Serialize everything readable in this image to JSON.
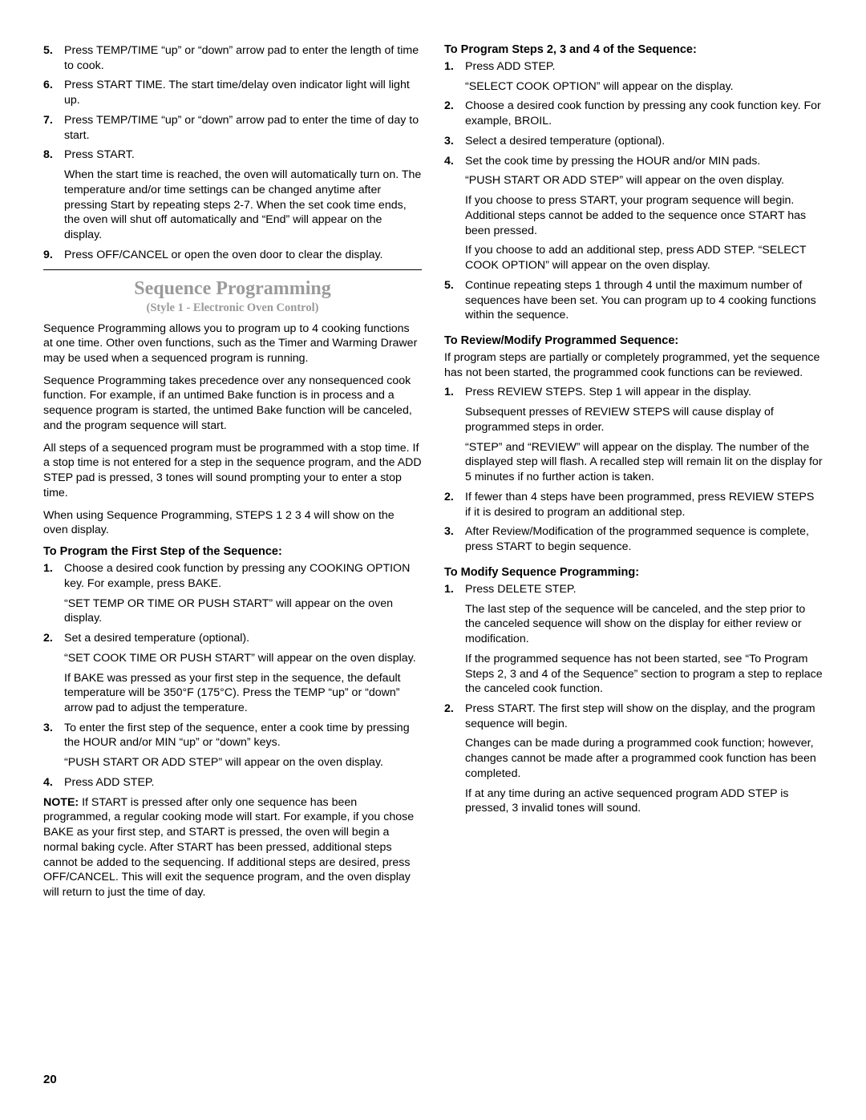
{
  "left": {
    "top_list": [
      {
        "n": "5.",
        "paras": [
          "Press TEMP/TIME “up” or “down” arrow pad to enter the length of time to cook."
        ]
      },
      {
        "n": "6.",
        "paras": [
          "Press START TIME. The start time/delay oven indicator light will light up."
        ]
      },
      {
        "n": "7.",
        "paras": [
          "Press TEMP/TIME “up” or “down” arrow pad to enter the time of day to start."
        ]
      },
      {
        "n": "8.",
        "paras": [
          "Press START.",
          "When the start time is reached, the oven will automatically turn on. The temperature and/or time settings can be changed anytime after pressing Start by repeating steps 2-7. When the set cook time ends, the oven will shut off automatically and “End” will appear on the display."
        ]
      },
      {
        "n": "9.",
        "paras": [
          "Press OFF/CANCEL or open the oven door to clear the display."
        ]
      }
    ],
    "section_title": "Sequence Programming",
    "section_sub": "(Style 1 - Electronic Oven Control)",
    "intro": [
      "Sequence Programming allows you to program up to 4 cooking functions at one time. Other oven functions, such as the Timer and Warming Drawer may be used when a sequenced program is running.",
      "Sequence Programming takes precedence over any nonsequenced cook function. For example, if an untimed Bake function is in process and a sequence program is started, the untimed Bake function will be canceled, and the program sequence will start.",
      "All steps of a sequenced program must be programmed with a stop time. If a stop time is not entered for a step in the sequence program, and the ADD STEP pad is pressed, 3 tones will sound prompting your to enter a stop time.",
      "When using Sequence Programming, STEPS 1 2 3 4 will show on the oven display."
    ],
    "h_first": "To Program the First Step of the Sequence:",
    "first_list": [
      {
        "n": "1.",
        "paras": [
          "Choose a desired cook function by pressing any COOKING OPTION key. For example, press BAKE.",
          "“SET TEMP OR TIME OR PUSH START” will appear on the oven display."
        ]
      },
      {
        "n": "2.",
        "paras": [
          "Set a desired temperature (optional).",
          "“SET COOK TIME OR PUSH START” will appear on the oven display.",
          "If BAKE was pressed as your first step in the sequence, the default temperature will be 350°F (175°C). Press the TEMP “up” or “down” arrow pad to adjust the temperature."
        ]
      },
      {
        "n": "3.",
        "paras": [
          "To enter the first step of the sequence, enter a cook time by pressing the HOUR and/or MIN “up” or “down” keys.",
          "“PUSH START OR ADD STEP” will appear on the oven display."
        ]
      },
      {
        "n": "4.",
        "paras": [
          "Press ADD STEP."
        ]
      }
    ],
    "note_label": "NOTE:",
    "note_text": " If START is pressed after only one sequence has been programmed, a regular cooking mode will start. For example, if you chose BAKE as your first step, and START is pressed, the oven will begin a normal baking cycle. After START has been pressed, additional steps cannot be added to the sequencing. If additional steps are desired, press OFF/CANCEL. This will exit the sequence program, and the oven display will return to just the time of day."
  },
  "right": {
    "h_steps": "To Program Steps 2, 3 and 4 of the Sequence:",
    "steps_list": [
      {
        "n": "1.",
        "paras": [
          "Press ADD STEP.",
          "“SELECT COOK OPTION” will appear on the display."
        ]
      },
      {
        "n": "2.",
        "paras": [
          "Choose a desired cook function by pressing any cook function key. For example, BROIL."
        ]
      },
      {
        "n": "3.",
        "paras": [
          "Select a desired temperature (optional)."
        ]
      },
      {
        "n": "4.",
        "paras": [
          "Set the cook time by pressing the HOUR and/or MIN pads.",
          "“PUSH START OR ADD STEP” will appear on the oven display.",
          "If you choose to press START, your program sequence will begin. Additional steps cannot be added to the sequence once START has been pressed.",
          "If you choose to add an additional step, press ADD STEP. “SELECT COOK OPTION” will appear on the oven display."
        ]
      },
      {
        "n": "5.",
        "paras": [
          "Continue repeating steps 1 through 4 until the maximum number of sequences have been set. You can program up to 4 cooking functions within the sequence."
        ]
      }
    ],
    "h_review": "To Review/Modify Programmed Sequence:",
    "review_intro": "If program steps are partially or completely programmed, yet the sequence has not been started, the programmed cook functions can be reviewed.",
    "review_list": [
      {
        "n": "1.",
        "paras": [
          "Press REVIEW STEPS. Step 1 will appear in the display.",
          "Subsequent presses of REVIEW STEPS will cause display of programmed steps in order.",
          "“STEP” and “REVIEW” will appear on the display. The number of the displayed step will flash. A recalled step will remain lit on the display for 5 minutes if no further action is taken."
        ]
      },
      {
        "n": "2.",
        "paras": [
          "If fewer than 4 steps have been programmed, press REVIEW STEPS if it is desired to program an additional step."
        ]
      },
      {
        "n": "3.",
        "paras": [
          "After Review/Modification of the programmed sequence is complete, press START to begin sequence."
        ]
      }
    ],
    "h_modify": "To Modify Sequence Programming:",
    "modify_list": [
      {
        "n": "1.",
        "paras": [
          "Press DELETE STEP.",
          "The last step of the sequence will be canceled, and the step prior to the canceled sequence will show on the display for either review or modification.",
          "If the programmed sequence has not been started, see “To Program Steps 2, 3 and 4 of the Sequence” section to program a step to replace the canceled cook function."
        ]
      },
      {
        "n": "2.",
        "paras": [
          "Press START. The first step will show on the display, and the program sequence will begin.",
          "Changes can be made during a programmed cook function; however, changes cannot be made after a programmed cook function has been completed.",
          "If at any time during an active sequenced program ADD STEP is pressed, 3 invalid tones will sound."
        ]
      }
    ]
  },
  "page_number": "20"
}
